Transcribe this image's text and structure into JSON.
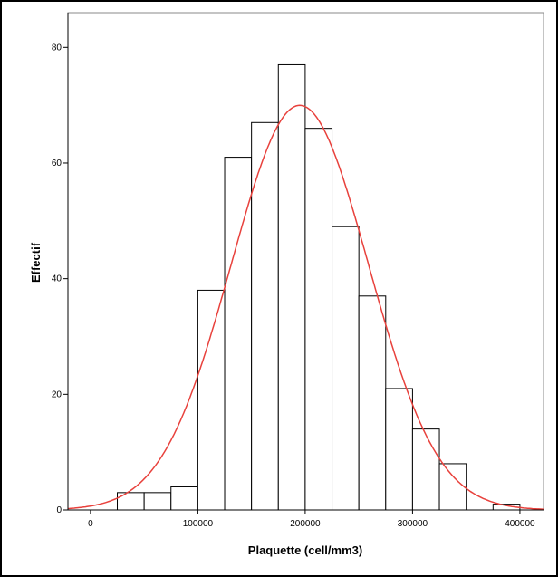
{
  "chart_data": {
    "type": "histogram",
    "bins": [
      25000,
      50000,
      75000,
      100000,
      125000,
      150000,
      175000,
      200000,
      225000,
      250000,
      275000,
      300000,
      325000,
      350000,
      375000,
      400000
    ],
    "values": [
      3,
      3,
      4,
      38,
      61,
      67,
      77,
      66,
      49,
      37,
      21,
      14,
      8,
      0,
      1
    ],
    "color": "#ffffff",
    "edge_color": "#000000",
    "xlim": [
      -21000,
      422000
    ],
    "ylim": [
      0,
      86
    ],
    "xticks": [
      0,
      100000,
      200000,
      300000,
      400000
    ],
    "yticks": [
      0,
      20,
      40,
      60,
      80
    ],
    "x_label": "Plaquette (cell/mm3)",
    "y_label": "Effectif",
    "normal_curve": {
      "mean": 195000,
      "sd": 64000,
      "color": "#e8413c"
    }
  }
}
